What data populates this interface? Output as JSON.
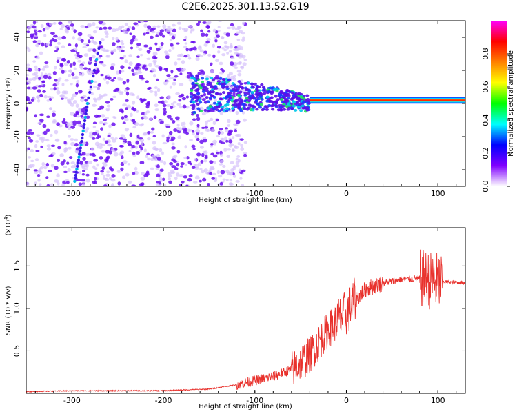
{
  "title": "C2E6.2025.301.13.52.G19",
  "colors": {
    "snr_line": "#e8312c",
    "frame": "#000000",
    "spectrogram_dot_strong": "#6a0ff0",
    "spectrogram_dot_faint": "#d6c2fb",
    "stable_carrier_core": "#ff2a00",
    "stable_carrier_edge": "#00d0ff"
  },
  "chart_data": [
    {
      "type": "heatmap",
      "name": "spectrogram",
      "xlabel": "Height of straight line (km)",
      "ylabel": "Frequency (Hz)",
      "xlim": [
        -350,
        130
      ],
      "ylim": [
        -50,
        50
      ],
      "xticks": [
        "-300",
        "-200",
        "-100",
        "0",
        "100"
      ],
      "yticks": [
        "-40",
        "-20",
        "0",
        "20",
        "40"
      ],
      "colorbar": {
        "label": "Normalized spectral amplitude",
        "range": [
          0.0,
          1.0
        ],
        "ticks": [
          "0.0",
          "0.2",
          "0.4",
          "0.6",
          "0.8"
        ],
        "colormap": [
          "#ffffff",
          "#8000ff",
          "#0000ff",
          "#00ffff",
          "#00ff00",
          "#ffff00",
          "#ff8000",
          "#ff0000",
          "#ff00ff"
        ]
      },
      "features": {
        "noise_region_x": [
          -350,
          -140
        ],
        "transition_region_x": [
          -170,
          -40
        ],
        "stable_region_x": [
          -40,
          130
        ],
        "carrier_frequency": 2,
        "streak_points": [
          {
            "x": -297,
            "y": -47
          },
          {
            "x": -290,
            "y": -25
          },
          {
            "x": -283,
            "y": 0
          },
          {
            "x": -268,
            "y": 40
          }
        ]
      }
    },
    {
      "type": "line",
      "name": "snr",
      "xlabel": "Height of straight line (km)",
      "ylabel": "SNR (10 * v/v)",
      "scale_label": "(x10",
      "scale_exponent": "4",
      "xlim": [
        -350,
        130
      ],
      "ylim": [
        0,
        1.95
      ],
      "xticks": [
        "-300",
        "-200",
        "-100",
        "0",
        "100"
      ],
      "yticks": [
        "0.5",
        "1.0",
        "1.5"
      ],
      "trend_x": [
        -350,
        -300,
        -200,
        -150,
        -120,
        -100,
        -80,
        -60,
        -40,
        -20,
        -10,
        0,
        10,
        20,
        40,
        60,
        80,
        100,
        130
      ],
      "trend_y": [
        0.02,
        0.03,
        0.03,
        0.05,
        0.1,
        0.15,
        0.2,
        0.28,
        0.45,
        0.75,
        0.85,
        0.95,
        1.1,
        1.22,
        1.3,
        1.34,
        1.35,
        1.32,
        1.3
      ]
    }
  ]
}
